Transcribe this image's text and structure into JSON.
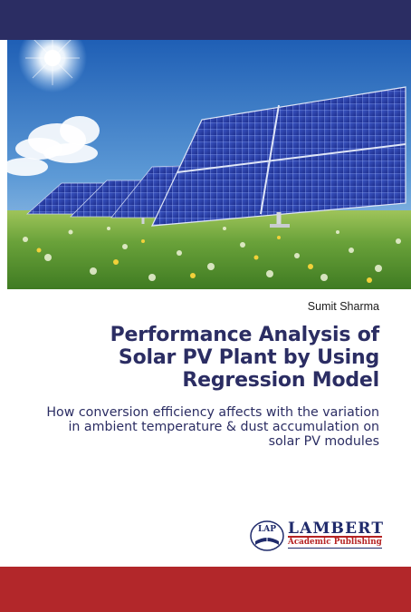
{
  "cover": {
    "author": "Sumit Sharma",
    "title": "Performance Analysis of\nSolar PV Plant by Using\nRegression Model",
    "subtitle": "How conversion efficiency affects with the variation\nin ambient temperature & dust accumulation on\nsolar PV modules"
  },
  "publisher": {
    "emblem_text": "LAP",
    "name": "LAMBERT",
    "tagline": "Academic Publishing"
  },
  "colors": {
    "top_band": "#2b2d63",
    "title": "#2b2d63",
    "bottom_band": "#b2272a",
    "publisher_red": "#b52222"
  }
}
